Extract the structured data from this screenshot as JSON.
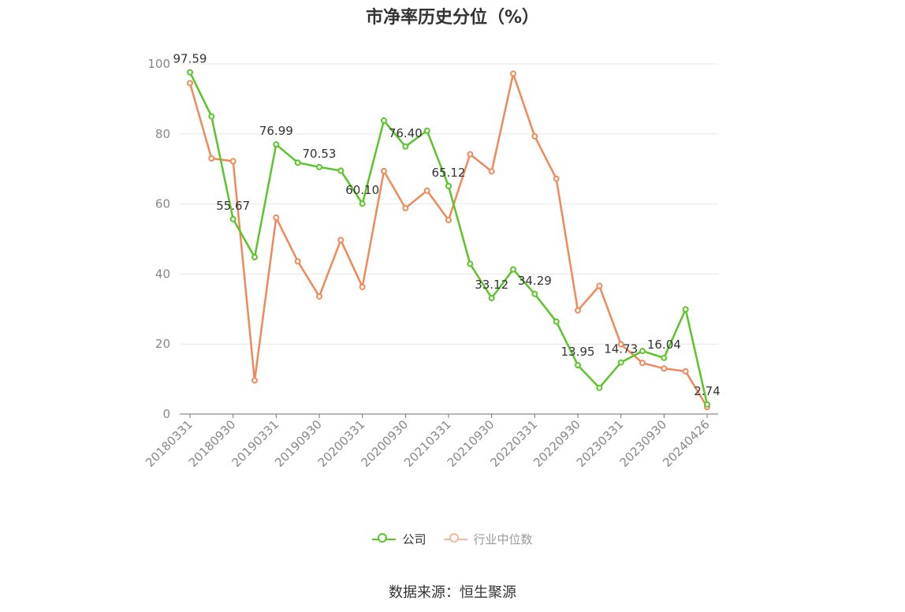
{
  "page": {
    "title": "市净率历史分位（%）",
    "source": "数据来源：恒生聚源"
  },
  "chart_data": {
    "type": "line",
    "title": "市净率历史分位（%）",
    "ylim": [
      0,
      100
    ],
    "yticks": [
      0,
      20,
      40,
      60,
      80,
      100
    ],
    "grid": true,
    "legend_position": "bottom",
    "x": [
      "20180331",
      "20180630",
      "20180930",
      "20181231",
      "20190331",
      "20190630",
      "20190930",
      "20191231",
      "20200331",
      "20200630",
      "20200930",
      "20201231",
      "20210331",
      "20210630",
      "20210930",
      "20211231",
      "20220331",
      "20220630",
      "20220930",
      "20221231",
      "20230331",
      "20230630",
      "20230930",
      "20231231",
      "20240426"
    ],
    "xtick_labels": [
      "20180331",
      "20180930",
      "20190331",
      "20190930",
      "20200331",
      "20200930",
      "20210331",
      "20210930",
      "20220331",
      "20220930",
      "20230331",
      "20230930",
      "20240426"
    ],
    "series": [
      {
        "name": "公司",
        "color": "#5bc428",
        "values": [
          97.59,
          85.0,
          55.67,
          44.8,
          76.99,
          71.8,
          70.53,
          69.5,
          60.1,
          83.8,
          76.4,
          80.9,
          65.12,
          42.9,
          33.12,
          41.3,
          34.29,
          26.4,
          13.95,
          7.5,
          14.73,
          18.0,
          16.04,
          29.9,
          2.74
        ],
        "data_labels": [
          {
            "index": 0,
            "text": "97.59"
          },
          {
            "index": 2,
            "text": "55.67"
          },
          {
            "index": 4,
            "text": "76.99"
          },
          {
            "index": 6,
            "text": "70.53"
          },
          {
            "index": 8,
            "text": "60.10"
          },
          {
            "index": 10,
            "text": "76.40"
          },
          {
            "index": 12,
            "text": "65.12"
          },
          {
            "index": 14,
            "text": "33.12"
          },
          {
            "index": 16,
            "text": "34.29"
          },
          {
            "index": 18,
            "text": "13.95"
          },
          {
            "index": 20,
            "text": "14.73"
          },
          {
            "index": 22,
            "text": "16.04"
          },
          {
            "index": 24,
            "text": "2.74"
          }
        ]
      },
      {
        "name": "行业中位数",
        "color": "#f0895a",
        "values": [
          94.5,
          73.0,
          72.2,
          9.6,
          56.1,
          43.6,
          33.6,
          49.7,
          36.3,
          69.4,
          58.8,
          63.8,
          55.4,
          74.2,
          69.3,
          97.2,
          79.3,
          67.2,
          29.6,
          36.6,
          19.9,
          14.6,
          13.0,
          12.2,
          2.0
        ]
      }
    ]
  },
  "legend": {
    "company": {
      "label": "公司",
      "color": "#5bc428"
    },
    "industry": {
      "label": "行业中位数",
      "color": "#f6b9a0"
    }
  }
}
